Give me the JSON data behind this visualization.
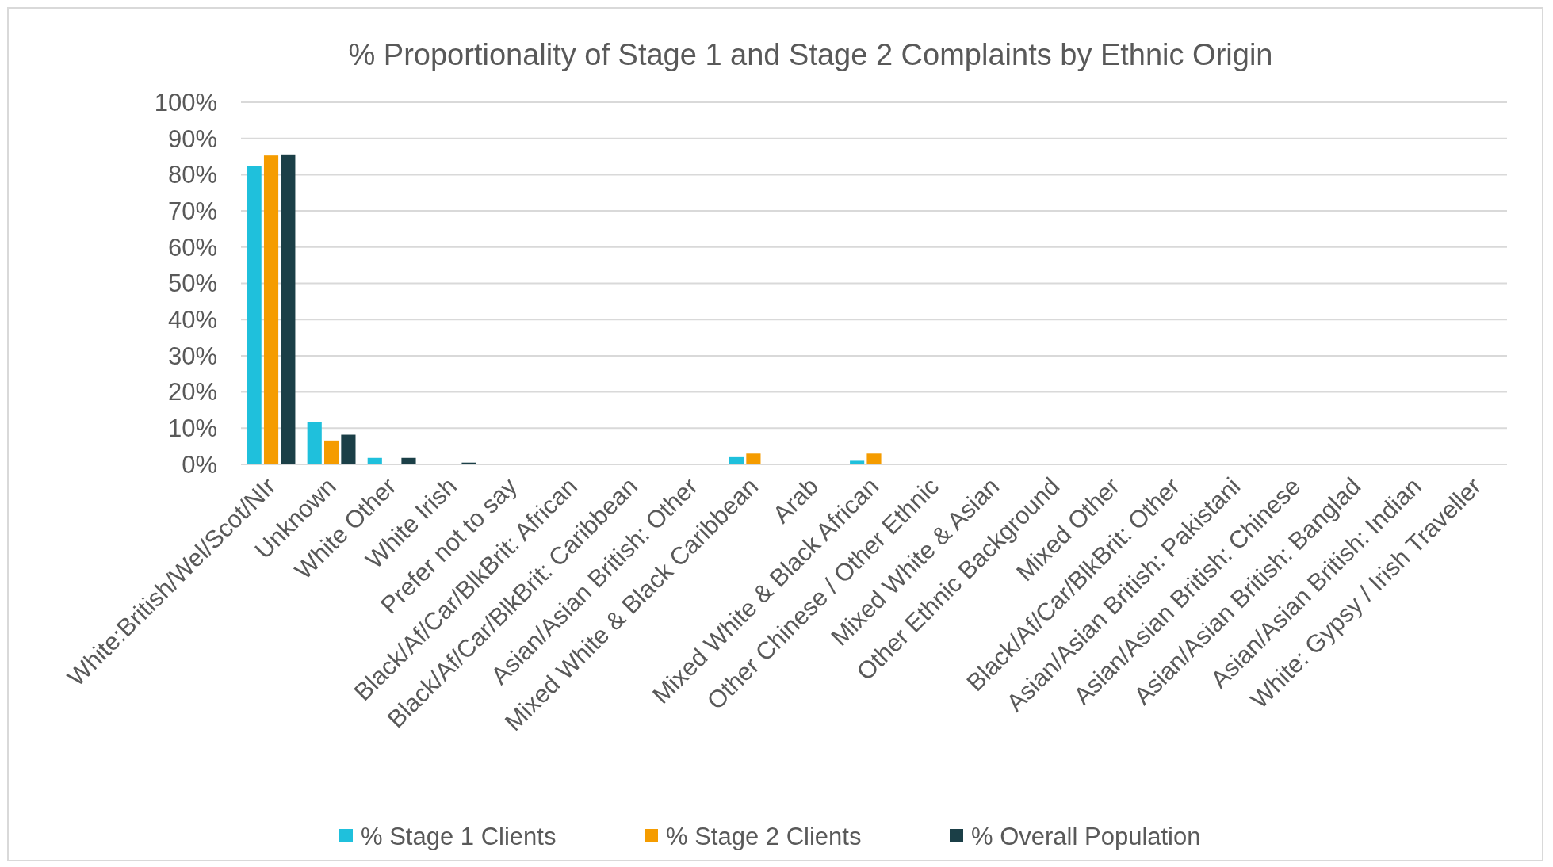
{
  "chart_data": {
    "type": "bar",
    "title": "% Proportionality of Stage 1 and Stage 2 Complaints by Ethnic Origin",
    "categories": [
      "White:British/Wel/Scot/NIr",
      "Unknown",
      "White Other",
      "White Irish",
      "Prefer not to say",
      "Black/Af/Car/BlkBrit: African",
      "Black/Af/Car/BlkBrit: Caribbean",
      "Asian/Asian British: Other",
      "Mixed White & Black Caribbean",
      "Arab",
      "Mixed White & Black African",
      "Other Chinese / Other Ethnic",
      "Mixed White & Asian",
      "Other Ethnic Background",
      "Mixed Other",
      "Black/Af/Car/BlkBrit: Other",
      "Asian/Asian British: Pakistani",
      "Asian/Asian British: Chinese",
      "Asian/Asian British: Banglad",
      "Asian/Asian British: Indian",
      "White: Gypsy / Irish Traveller"
    ],
    "series": [
      {
        "name": "% Stage 1 Clients",
        "color": "#1fc0dc",
        "values": [
          82.3,
          11.7,
          1.8,
          0,
          0,
          0,
          0,
          0,
          2,
          0,
          1,
          0,
          0,
          0,
          0,
          0,
          0,
          0,
          0,
          0,
          0
        ]
      },
      {
        "name": "% Stage 2 Clients",
        "color": "#f59c00",
        "values": [
          85.3,
          6.6,
          0,
          0,
          0,
          0,
          0,
          0,
          3,
          0,
          3,
          0,
          0,
          0,
          0,
          0,
          0,
          0,
          0,
          0,
          0
        ]
      },
      {
        "name": "% Overall Population",
        "color": "#1b3f47",
        "values": [
          85.6,
          8.2,
          1.8,
          0.5,
          0,
          0,
          0,
          0,
          0,
          0,
          0,
          0,
          0,
          0,
          0,
          0,
          0,
          0,
          0,
          0,
          0
        ]
      }
    ],
    "ylim": [
      0,
      100
    ],
    "yticks": [
      {
        "value": 0,
        "label": "0%"
      },
      {
        "value": 10,
        "label": "10%"
      },
      {
        "value": 20,
        "label": "20%"
      },
      {
        "value": 30,
        "label": "30%"
      },
      {
        "value": 40,
        "label": "40%"
      },
      {
        "value": 50,
        "label": "50%"
      },
      {
        "value": 60,
        "label": "60%"
      },
      {
        "value": 70,
        "label": "70%"
      },
      {
        "value": 80,
        "label": "80%"
      },
      {
        "value": 90,
        "label": "90%"
      },
      {
        "value": 100,
        "label": "100%"
      }
    ],
    "grid": "y",
    "legend": "bottom"
  }
}
